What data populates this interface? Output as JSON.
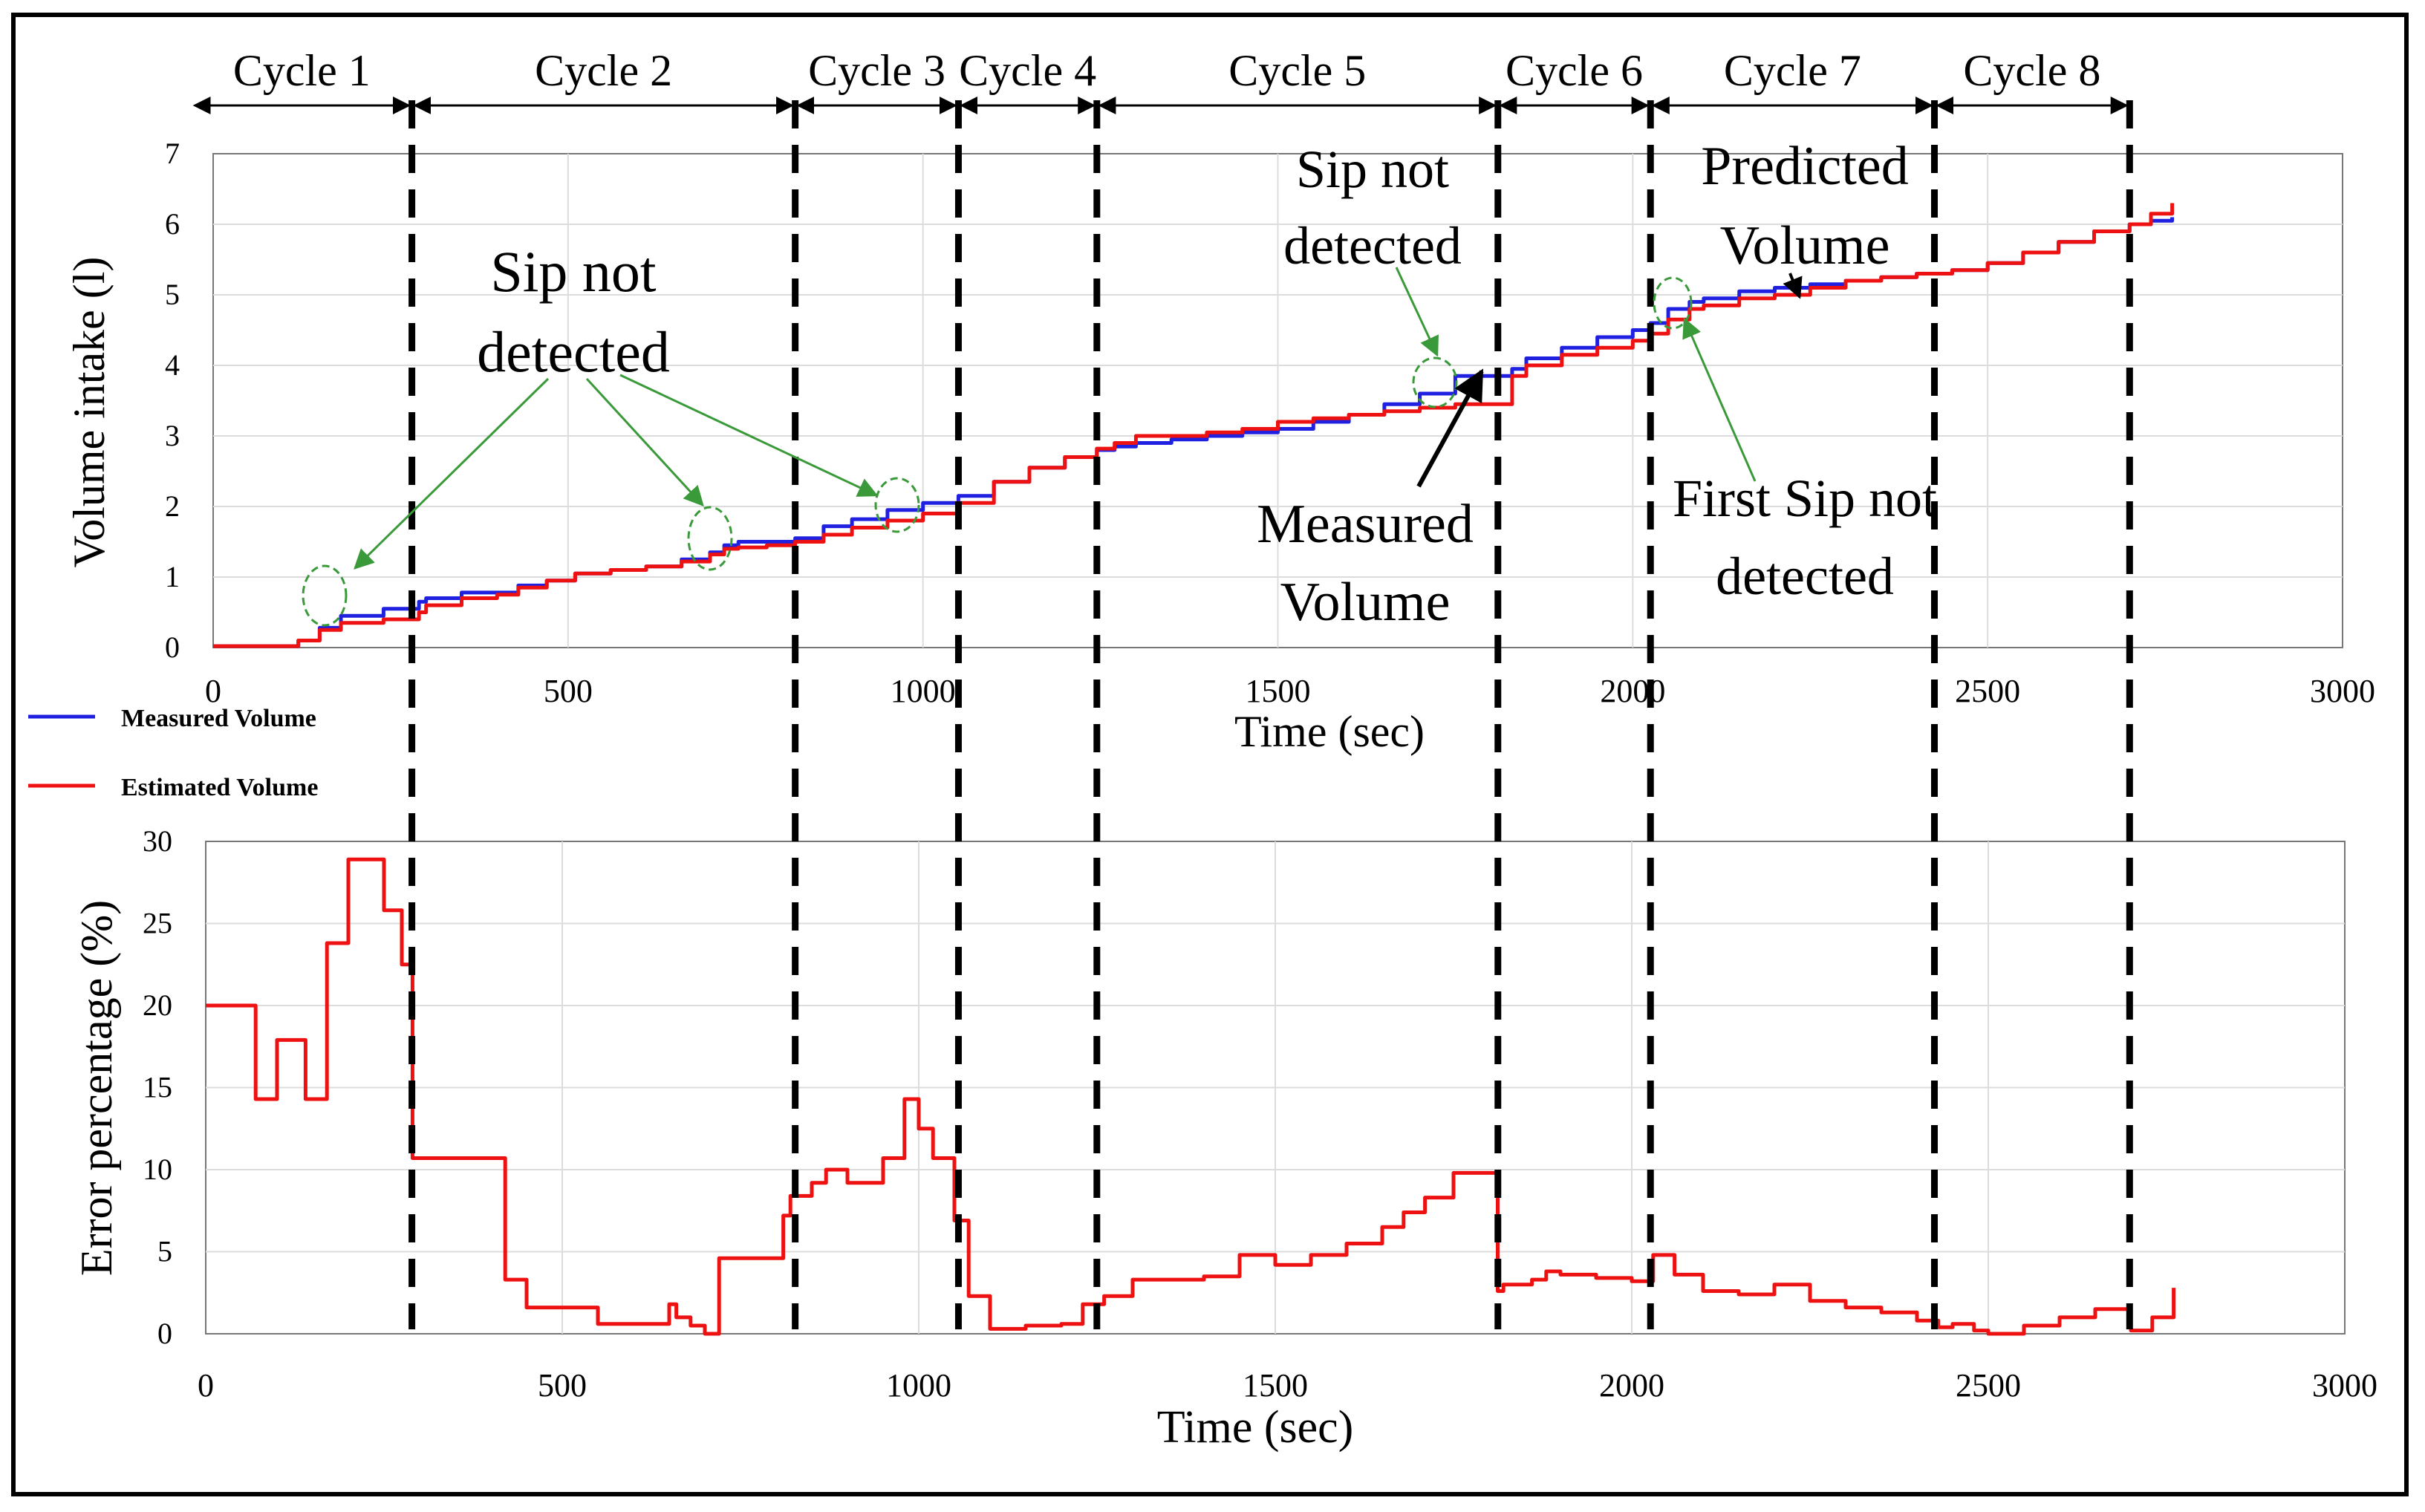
{
  "cycles": {
    "labels": [
      "Cycle 1",
      "Cycle 2",
      "Cycle 3",
      "Cycle 4",
      "Cycle 5",
      "Cycle 6",
      "Cycle 7",
      "Cycle 8"
    ],
    "boundaries": [
      0,
      280,
      820,
      1050,
      1245,
      1810,
      2025,
      2425,
      2700
    ]
  },
  "legend": {
    "measured_label": "Measured Volume",
    "estimated_label": "Estimated Volume",
    "measured_color": "#2020e0",
    "estimated_color": "#ee1111"
  },
  "annotations": {
    "sip_not_detected_left_line1": "Sip not",
    "sip_not_detected_left_line2": "detected",
    "sip_not_detected_mid_line1": "Sip not",
    "sip_not_detected_mid_line2": "detected",
    "measured_volume_line1": "Measured",
    "measured_volume_line2": "Volume",
    "predicted_volume_line1": "Predicted",
    "predicted_volume_line2": "Volume",
    "first_sip_line1": "First Sip not",
    "first_sip_line2": "detected",
    "annotation_color": "#3a9a3a"
  },
  "chart_data": [
    {
      "type": "line",
      "title": "",
      "xlabel": "Time (sec)",
      "ylabel": "Volume intake (l)",
      "xlim": [
        0,
        3000
      ],
      "ylim": [
        0,
        7
      ],
      "xticks": [
        "0",
        "500",
        "1000",
        "1500",
        "2000",
        "2500",
        "3000"
      ],
      "yticks": [
        "0",
        "1",
        "2",
        "3",
        "4",
        "5",
        "6",
        "7"
      ],
      "series": [
        {
          "name": "Measured Volume",
          "x": [
            0,
            70,
            120,
            150,
            180,
            240,
            290,
            300,
            350,
            400,
            430,
            470,
            510,
            560,
            610,
            660,
            700,
            720,
            740,
            780,
            820,
            860,
            900,
            950,
            1000,
            1050,
            1100,
            1150,
            1200,
            1245,
            1270,
            1300,
            1350,
            1400,
            1450,
            1500,
            1550,
            1600,
            1650,
            1700,
            1750,
            1780,
            1810,
            1830,
            1850,
            1900,
            1950,
            2000,
            2025,
            2050,
            2080,
            2100,
            2150,
            2200,
            2250,
            2300,
            2350,
            2400,
            2450,
            2500,
            2550,
            2600,
            2650,
            2700,
            2730,
            2760
          ],
          "values": [
            0.02,
            0.02,
            0.1,
            0.28,
            0.45,
            0.55,
            0.65,
            0.7,
            0.78,
            0.78,
            0.88,
            0.95,
            1.05,
            1.1,
            1.15,
            1.25,
            1.35,
            1.45,
            1.5,
            1.5,
            1.55,
            1.72,
            1.82,
            1.95,
            2.05,
            2.15,
            2.35,
            2.55,
            2.7,
            2.8,
            2.85,
            2.9,
            2.95,
            3.0,
            3.05,
            3.1,
            3.2,
            3.3,
            3.45,
            3.6,
            3.85,
            3.85,
            3.85,
            3.95,
            4.1,
            4.25,
            4.4,
            4.5,
            4.6,
            4.8,
            4.9,
            4.95,
            5.05,
            5.1,
            5.15,
            5.2,
            5.25,
            5.3,
            5.35,
            5.45,
            5.6,
            5.75,
            5.9,
            6.0,
            6.05,
            6.1
          ]
        },
        {
          "name": "Estimated Volume",
          "x": [
            0,
            70,
            120,
            150,
            180,
            240,
            290,
            300,
            350,
            400,
            430,
            470,
            510,
            560,
            610,
            660,
            700,
            720,
            740,
            780,
            820,
            860,
            900,
            950,
            1000,
            1050,
            1100,
            1150,
            1200,
            1245,
            1270,
            1300,
            1350,
            1400,
            1450,
            1500,
            1550,
            1600,
            1650,
            1700,
            1750,
            1780,
            1810,
            1830,
            1850,
            1900,
            1950,
            2000,
            2025,
            2050,
            2080,
            2100,
            2150,
            2200,
            2250,
            2300,
            2350,
            2400,
            2450,
            2500,
            2550,
            2600,
            2650,
            2700,
            2730,
            2760
          ],
          "values": [
            0.02,
            0.02,
            0.1,
            0.25,
            0.35,
            0.4,
            0.5,
            0.6,
            0.7,
            0.75,
            0.85,
            0.95,
            1.05,
            1.1,
            1.15,
            1.22,
            1.32,
            1.4,
            1.42,
            1.45,
            1.5,
            1.6,
            1.7,
            1.8,
            1.9,
            2.05,
            2.35,
            2.55,
            2.7,
            2.82,
            2.9,
            3.0,
            3.0,
            3.05,
            3.1,
            3.2,
            3.25,
            3.3,
            3.35,
            3.4,
            3.45,
            3.45,
            3.45,
            3.85,
            4.0,
            4.15,
            4.25,
            4.35,
            4.45,
            4.65,
            4.8,
            4.85,
            4.95,
            5.0,
            5.1,
            5.2,
            5.25,
            5.3,
            5.35,
            5.45,
            5.6,
            5.75,
            5.9,
            6.0,
            6.15,
            6.3
          ]
        }
      ]
    },
    {
      "type": "line",
      "title": "",
      "xlabel": "Time (sec)",
      "ylabel": "Error percentage (%)",
      "xlim": [
        0,
        3000
      ],
      "ylim": [
        0,
        30
      ],
      "xticks": [
        "0",
        "500",
        "1000",
        "1500",
        "2000",
        "2500",
        "3000"
      ],
      "yticks": [
        "0",
        "5",
        "10",
        "15",
        "20",
        "25",
        "30"
      ],
      "series": [
        {
          "name": "Error percentage",
          "x": [
            0,
            70,
            100,
            140,
            170,
            200,
            250,
            275,
            290,
            400,
            420,
            450,
            550,
            650,
            660,
            680,
            700,
            720,
            750,
            810,
            820,
            850,
            870,
            900,
            950,
            980,
            1000,
            1020,
            1050,
            1070,
            1100,
            1150,
            1200,
            1230,
            1260,
            1300,
            1340,
            1400,
            1450,
            1500,
            1550,
            1600,
            1650,
            1680,
            1710,
            1750,
            1800,
            1812,
            1820,
            1860,
            1880,
            1900,
            1950,
            2000,
            2030,
            2060,
            2100,
            2150,
            2200,
            2250,
            2300,
            2350,
            2400,
            2430,
            2450,
            2480,
            2500,
            2550,
            2600,
            2650,
            2700,
            2730,
            2760
          ],
          "values": [
            20,
            14.3,
            17.9,
            14.3,
            23.8,
            28.9,
            25.8,
            22.5,
            10.7,
            10.7,
            3.3,
            1.6,
            0.6,
            1.8,
            1.0,
            0.5,
            0.0,
            4.6,
            4.6,
            7.2,
            8.4,
            9.2,
            10.0,
            9.2,
            10.7,
            14.3,
            12.5,
            10.7,
            6.9,
            2.3,
            0.3,
            0.5,
            0.6,
            1.8,
            2.3,
            3.3,
            3.3,
            3.5,
            4.8,
            4.2,
            4.8,
            5.5,
            6.5,
            7.4,
            8.3,
            9.8,
            9.8,
            2.6,
            3.0,
            3.3,
            3.8,
            3.6,
            3.4,
            3.2,
            4.8,
            3.6,
            2.6,
            2.4,
            3.0,
            2.0,
            1.6,
            1.3,
            0.8,
            0.4,
            0.6,
            0.2,
            0.0,
            0.5,
            1.0,
            1.5,
            0.2,
            1.0,
            2.8
          ]
        }
      ]
    }
  ]
}
